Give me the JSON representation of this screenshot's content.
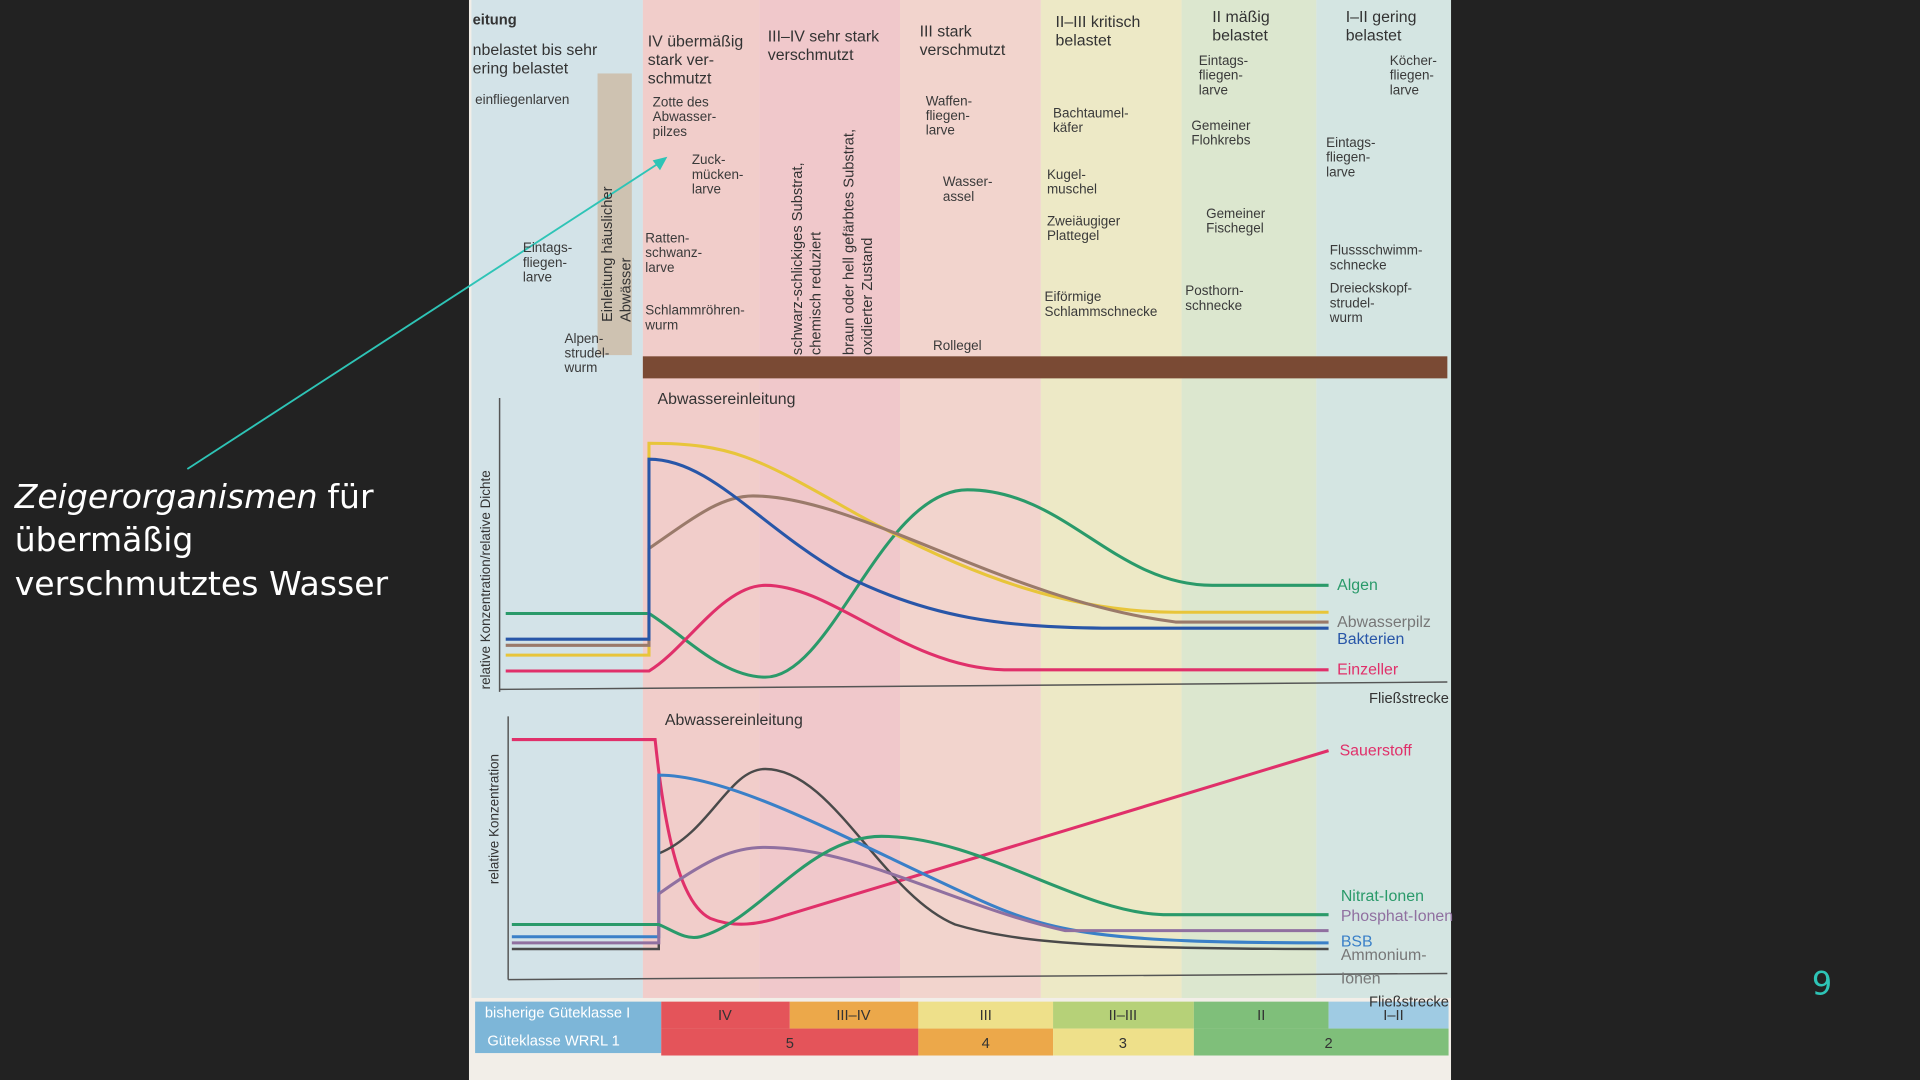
{
  "slide": {
    "caption": {
      "italic": "Zeigerorganismen",
      "lines": [
        "für",
        "übermäßig",
        "verschmutztes Wasser"
      ]
    },
    "page_number": "9"
  },
  "figure": {
    "corner_label": "eitung",
    "zones": [
      [
        "nbelastet bis sehr",
        "ering belastet"
      ],
      [
        "IV übermäßig",
        "stark ver-",
        "schmutzt"
      ],
      [
        "III–IV sehr stark",
        "verschmutzt"
      ],
      [
        "III stark",
        "verschmutzt"
      ],
      [
        "II–III kritisch",
        "belastet"
      ],
      [
        "II mäßig",
        "belastet"
      ],
      [
        "I–II gering",
        "belastet"
      ]
    ],
    "organisms": [
      [
        "einfliegenlarven"
      ],
      [
        "Eintags-",
        "fliegen-",
        "larve"
      ],
      [
        "Alpen-",
        "strudel-",
        "wurm"
      ],
      [
        "Zotte des",
        "Abwasser-",
        "pilzes"
      ],
      [
        "Zuck-",
        "mücken-",
        "larve"
      ],
      [
        "Ratten-",
        "schwanz-",
        "larve"
      ],
      [
        "Schlammröhren-",
        "wurm"
      ],
      [
        "Waffen-",
        "fliegen-",
        "larve"
      ],
      [
        "Wasser-",
        "assel"
      ],
      [
        "Rollegel"
      ],
      [
        "Bachtaumel-",
        "käfer"
      ],
      [
        "Kugel-",
        "muschel"
      ],
      [
        "Zweiäugiger",
        "Plattegel"
      ],
      [
        "Eiförmige",
        "Schlammschnecke"
      ],
      [
        "Eintags-",
        "fliegen-",
        "larve"
      ],
      [
        "Gemeiner",
        "Flohkrebs"
      ],
      [
        "Gemeiner",
        "Fischegel"
      ],
      [
        "Posthorn-",
        "schnecke"
      ],
      [
        "Köcher-",
        "fliegen-",
        "larve"
      ],
      [
        "Eintags-",
        "fliegen-",
        "larve"
      ],
      [
        "Flussschwimm-",
        "schnecke"
      ],
      [
        "Dreieckskopf-",
        "strudel-",
        "wurm"
      ]
    ],
    "vertical_labels": [
      [
        "Einleitung häuslicher",
        "Abwässer"
      ],
      [
        "schwarz-schlickiges Substrat,",
        "chemisch reduziert"
      ],
      [
        "braun oder hell gefärbtes Substrat,",
        "oxidierter Zustand"
      ]
    ],
    "upper_chart": {
      "marker": "Abwassereinleitung",
      "y_label": "relative Konzentration/relative Dichte",
      "x_label": "Fließstrecke",
      "curve_labels": [
        "Algen",
        "Abwasserpilz",
        "Bakterien",
        "Einzeller"
      ]
    },
    "lower_chart": {
      "marker": "Abwassereinleitung",
      "y_label": "relative Konzentration",
      "x_label": "Fließstrecke",
      "curve_labels": [
        "Sauerstoff",
        "Nitrat-Ionen",
        "Phosphat-Ionen",
        "BSB",
        "Ammonium-",
        "Ionen"
      ]
    },
    "classes": {
      "row1_label": "bisherige Güteklasse I",
      "row1": [
        "IV",
        "III–IV",
        "III",
        "II–III",
        "II",
        "I–II"
      ],
      "row2_label": "Güteklasse WRRL 1",
      "row2": [
        "5",
        "4",
        "3",
        "2"
      ]
    }
  }
}
